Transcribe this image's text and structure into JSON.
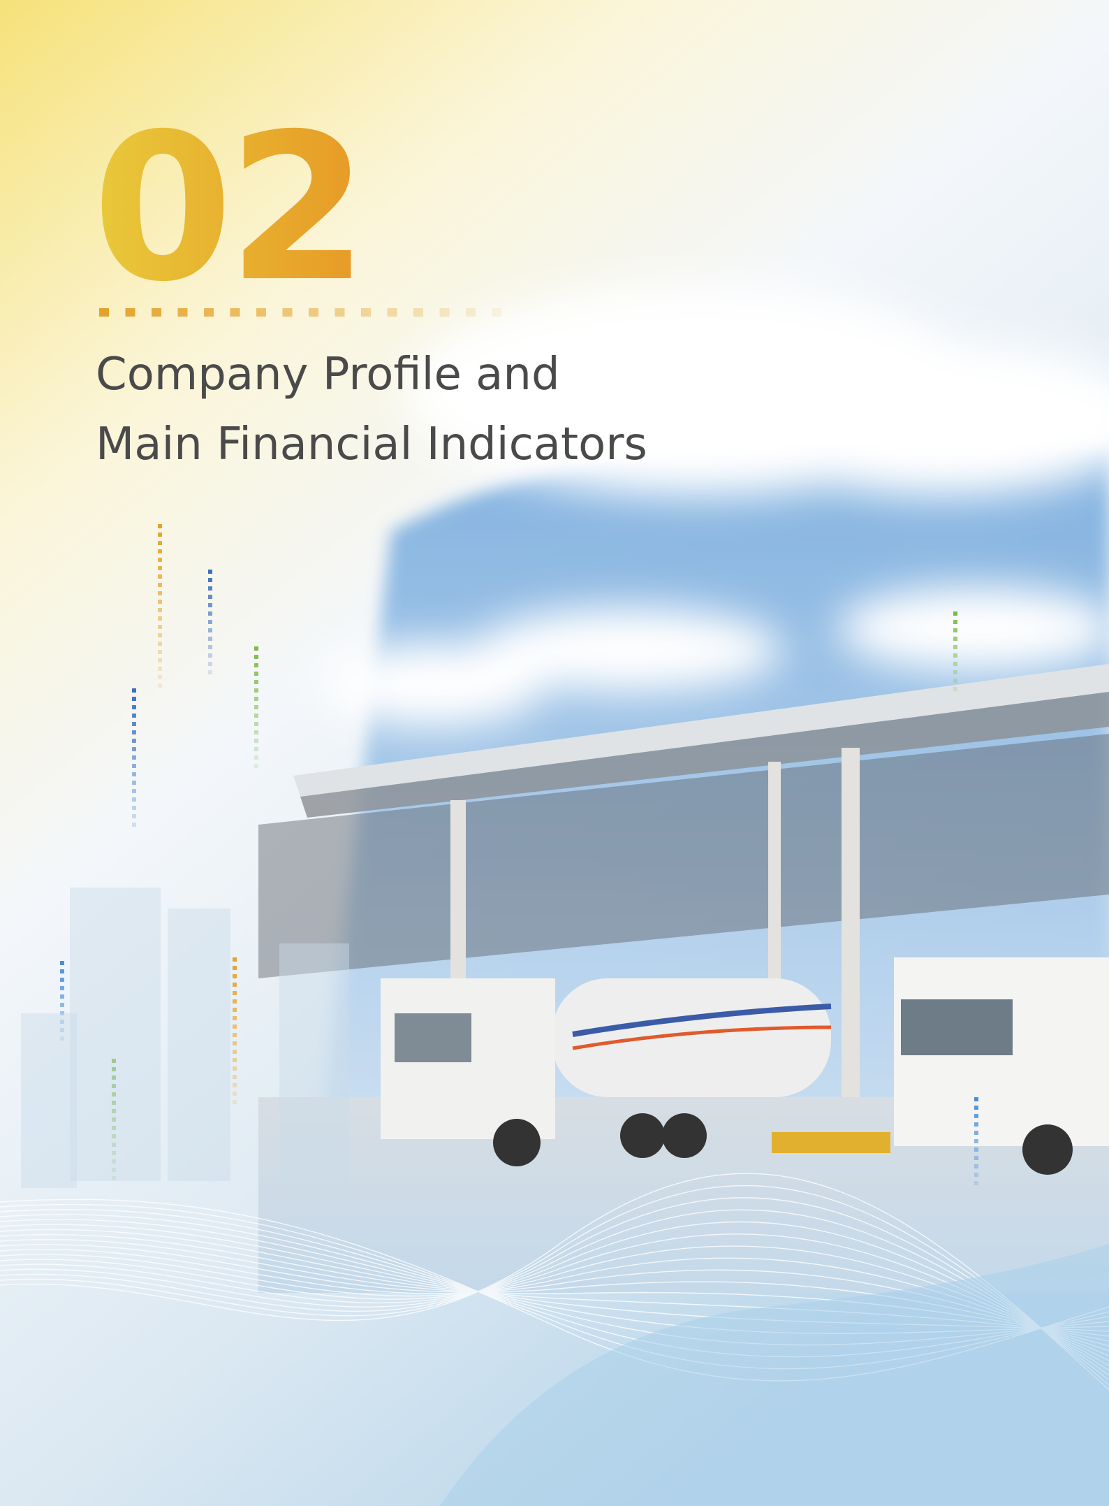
{
  "section": {
    "number": "02",
    "title_lines": [
      "Company Profile and",
      "Main Financial Indicators"
    ]
  }
}
